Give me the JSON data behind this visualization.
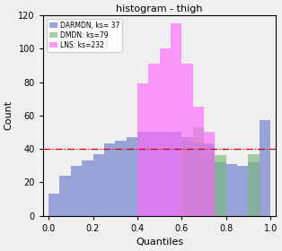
{
  "title": "histogram - thigh",
  "xlabel": "Quantiles",
  "ylabel": "Count",
  "xlim": [
    -0.025,
    1.025
  ],
  "ylim": [
    0,
    120
  ],
  "yticks": [
    0,
    20,
    40,
    60,
    80,
    100,
    120
  ],
  "xticks": [
    0.0,
    0.2,
    0.4,
    0.6,
    0.8,
    1.0
  ],
  "hline_y": 40,
  "hline_color": "#cc0000",
  "hline_style": "-.",
  "hline_lw": 0.9,
  "n_bins": 20,
  "legend_labels": [
    "DARMDN, ks= 37",
    "DMDN: ks=79",
    "LNS: ks=232"
  ],
  "colors": [
    "#6878c8",
    "#78b878",
    "#ff66ff"
  ],
  "alphas": [
    0.65,
    0.65,
    0.65
  ],
  "DARMDN_counts": [
    13,
    24,
    30,
    33,
    37,
    43,
    45,
    47,
    50,
    50,
    50,
    50,
    47,
    44,
    43,
    32,
    31,
    30,
    32,
    57
  ],
  "DMDN_counts": [
    0,
    0,
    0,
    0,
    0,
    0,
    0,
    0,
    0,
    0,
    0,
    0,
    45,
    53,
    38,
    36,
    0,
    0,
    37,
    0
  ],
  "LNS_counts": [
    0,
    0,
    0,
    0,
    0,
    0,
    0,
    0,
    79,
    91,
    100,
    115,
    91,
    65,
    50,
    0,
    0,
    0,
    0,
    0
  ],
  "background_color": "#f0f0f0",
  "figsize": [
    3.14,
    2.8
  ],
  "dpi": 100,
  "title_fontsize": 8,
  "label_fontsize": 8,
  "tick_fontsize": 7,
  "legend_fontsize": 5.5
}
